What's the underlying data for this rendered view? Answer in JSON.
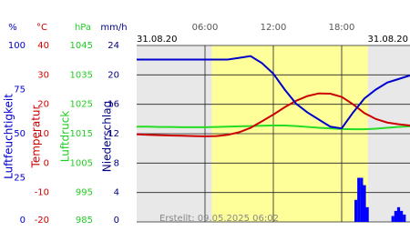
{
  "chart_data": {
    "type": "line",
    "date_left": "31.08.20",
    "date_right": "31.08.20",
    "created": "Erstellt: 09.05.2025 06:02",
    "xlim": [
      0,
      24
    ],
    "xticks": [
      {
        "value": 6,
        "label": "06:00"
      },
      {
        "value": 12,
        "label": "12:00"
      },
      {
        "value": 18,
        "label": "18:00"
      }
    ],
    "daylight": [
      6.6,
      20.3
    ],
    "grid": true,
    "axes": [
      {
        "unit": "%",
        "title": "Luftfeuchtigkeit",
        "color": "#0000cc",
        "ylim": [
          0,
          100
        ],
        "yticks": [
          0,
          25,
          50,
          75,
          100
        ]
      },
      {
        "unit": "°C",
        "title": "Temperatur",
        "color": "#cc0000",
        "ylim": [
          -20,
          40
        ],
        "yticks": [
          -20,
          -10,
          0,
          10,
          20,
          30,
          40
        ]
      },
      {
        "unit": "hPa",
        "title": "Luftdruck",
        "color": "#22cc22",
        "ylim": [
          985,
          1045
        ],
        "yticks": [
          985,
          995,
          1005,
          1015,
          1025,
          1035,
          1045
        ]
      },
      {
        "unit": "mm/h",
        "title": "Niederschlag",
        "color": "#000080",
        "ylim": [
          0,
          24
        ],
        "yticks": [
          0,
          4,
          8,
          12,
          16,
          20,
          24
        ]
      }
    ],
    "x": [
      0,
      1,
      2,
      3,
      4,
      5,
      6,
      7,
      8,
      9,
      10,
      11,
      12,
      13,
      14,
      15,
      16,
      17,
      18,
      19,
      20,
      21,
      22,
      23,
      24
    ],
    "series": [
      {
        "name": "Luftfeuchtigkeit",
        "axis": 0,
        "color": "#0000cc",
        "kind": "line",
        "values": [
          92,
          92,
          92,
          92,
          92,
          92,
          92,
          92,
          92,
          93,
          94,
          90,
          84,
          75,
          67,
          62,
          58,
          54,
          53,
          62,
          70,
          75,
          79,
          81,
          83
        ]
      },
      {
        "name": "Temperatur",
        "axis": 1,
        "color": "#cc0000",
        "kind": "line",
        "values": [
          9.8,
          9.6,
          9.5,
          9.4,
          9.3,
          9.2,
          9.1,
          9.2,
          9.6,
          10.5,
          12,
          14.2,
          16.5,
          19,
          21.2,
          22.8,
          23.7,
          23.6,
          22.5,
          20,
          17,
          15,
          13.8,
          13.2,
          12.8
        ]
      },
      {
        "name": "Luftdruck",
        "axis": 2,
        "color": "#22dd22",
        "kind": "line",
        "values": [
          1017.4,
          1017.4,
          1017.3,
          1017.3,
          1017.2,
          1017.2,
          1017.2,
          1017.3,
          1017.4,
          1017.5,
          1017.6,
          1017.7,
          1017.8,
          1017.8,
          1017.6,
          1017.3,
          1017,
          1016.8,
          1016.6,
          1016.5,
          1016.5,
          1016.7,
          1017,
          1017.3,
          1017.5
        ]
      },
      {
        "name": "Niederschlag",
        "axis": 3,
        "color": "#0000ff",
        "kind": "bar",
        "x": [
          19.25,
          19.5,
          19.75,
          20,
          20.25,
          22.5,
          22.75,
          23,
          23.25,
          23.5
        ],
        "values": [
          3,
          6,
          6,
          5,
          2,
          0.8,
          1.5,
          2,
          1.5,
          1
        ]
      }
    ]
  }
}
